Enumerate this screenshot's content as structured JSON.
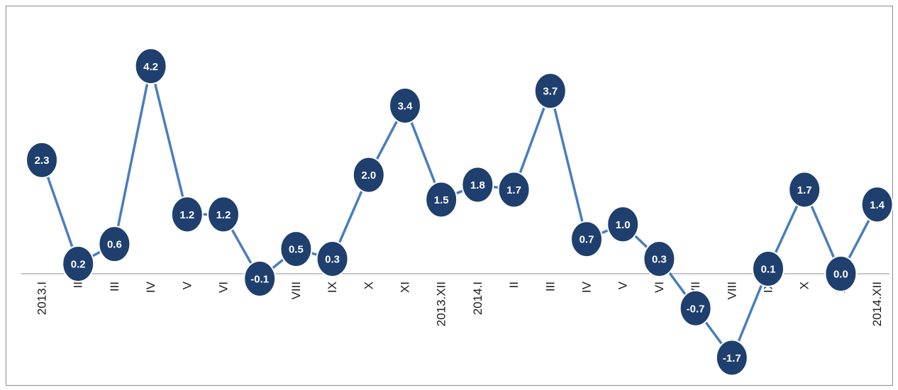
{
  "chart_data": {
    "type": "line",
    "categories": [
      "2013.I",
      "II",
      "III",
      "IV",
      "V",
      "VI",
      "VII",
      "VIII",
      "IX",
      "X",
      "XI",
      "2013.XII",
      "2014.I",
      "II",
      "III",
      "IV",
      "V",
      "VI",
      "VII",
      "VIII",
      "IX",
      "X",
      "XI",
      "2014.XII"
    ],
    "series": [
      {
        "values": [
          2.3,
          0.2,
          0.6,
          4.2,
          1.2,
          1.2,
          -0.1,
          0.5,
          0.3,
          2.0,
          3.4,
          1.5,
          1.8,
          1.7,
          3.7,
          0.7,
          1.0,
          0.3,
          -0.7,
          -1.7,
          0.1,
          1.7,
          0.0,
          1.4
        ],
        "labels": [
          "2.3",
          "0.2",
          "0.6",
          "4.2",
          "1.2",
          "1.2",
          "-0.1",
          "0.5",
          "0.3",
          "2.0",
          "3.4",
          "1.5",
          "1.8",
          "1.7",
          "3.7",
          "0.7",
          "1.0",
          "0.3",
          "-0.7",
          "-1.7",
          "0.1",
          "1.7",
          "0.0",
          "1.4"
        ]
      }
    ],
    "title": "",
    "xlabel": "",
    "ylabel": "",
    "grid": false,
    "legend": "none",
    "colors": {
      "line": "#4a7ebb",
      "marker": "#1f3f6e",
      "marker_border": "#ffffff",
      "axis": "#8c8c8c",
      "label_text": "#ffffff"
    }
  }
}
